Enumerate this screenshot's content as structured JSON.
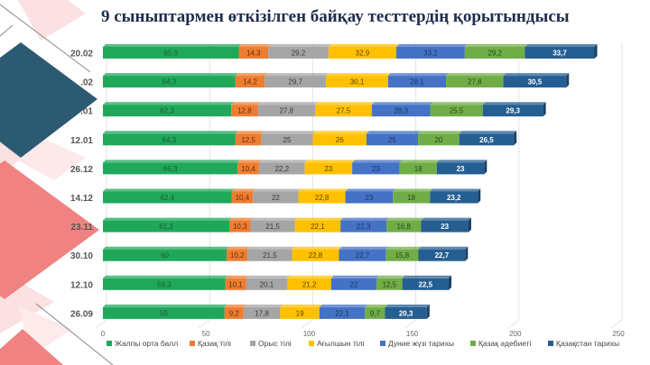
{
  "slide": {
    "title": "9 сыныптармен өткізілген байқау тесттердің қорытындысы"
  },
  "colors": {
    "background": "#ffffff",
    "deco_dark": "#2b5a72",
    "deco_pink": "#f08282",
    "deco_light_pink": "#fbe1e1"
  },
  "chart_data": {
    "type": "bar",
    "orientation": "horizontal",
    "stacked": true,
    "title": "9 сыныптармен өткізілген байқау тесттердің қорытындысы",
    "xlabel": "",
    "ylabel": "",
    "xlim": [
      0,
      250
    ],
    "x_ticks": [
      "0",
      "50",
      "100",
      "150",
      "200",
      "250"
    ],
    "grid": true,
    "legend_position": "bottom",
    "categories": [
      "20.02",
      ".02",
      ".01",
      "12.01",
      "26.12",
      "14.12",
      "23.11",
      "30.10",
      "12.10",
      "26.09"
    ],
    "series": [
      {
        "name": "Жалпы орта балл",
        "color": "#1fa85a",
        "label_color": "#1a5c33",
        "values": [
          "65,9",
          "64,3",
          "62,3",
          "64,3",
          "65,3",
          "62,4",
          "61,3",
          "60",
          "59,3",
          "59"
        ]
      },
      {
        "name": "Қазақ тілі",
        "color": "#ed7d31",
        "label_color": "#6b2e0a",
        "values": [
          "14,3",
          "14,2",
          "12,8",
          "12,5",
          "10,4",
          "10,4",
          "10,3",
          "10,2",
          "10,1",
          "9,2"
        ]
      },
      {
        "name": "Орыс тілі",
        "color": "#a5a5a5",
        "label_color": "#3a3a3a",
        "values": [
          "29,2",
          "29,7",
          "27,8",
          "25",
          "22,2",
          "22",
          "21,5",
          "21,5",
          "20,1",
          "17,8"
        ]
      },
      {
        "name": "Ағылшын тілі",
        "color": "#ffc000",
        "label_color": "#5e4500",
        "values": [
          "32,9",
          "30,1",
          "27,5",
          "26",
          "23",
          "22,8",
          "22,1",
          "22,8",
          "21,2",
          "19"
        ]
      },
      {
        "name": "Дүние жүзі тарихы",
        "color": "#4472c4",
        "label_color": "#1c3566",
        "values": [
          "33,2",
          "28,1",
          "28,3",
          "25",
          "23",
          "23",
          "22,3",
          "22,7",
          "22",
          "22,1"
        ]
      },
      {
        "name": "Қазақ әдебиеті",
        "color": "#70ad47",
        "label_color": "#27461a",
        "values": [
          "29,2",
          "27,8",
          "25,5",
          "20",
          "18",
          "18",
          "16,8",
          "15,8",
          "12,5",
          "9,7"
        ]
      },
      {
        "name": "Қазақстан тарихы",
        "color": "#255e91",
        "label_color": "#ffffff",
        "values": [
          "33,7",
          "30,5",
          "29,3",
          "26,5",
          "23",
          "23,2",
          "23",
          "22,7",
          "22,5",
          "20,3"
        ]
      }
    ]
  }
}
